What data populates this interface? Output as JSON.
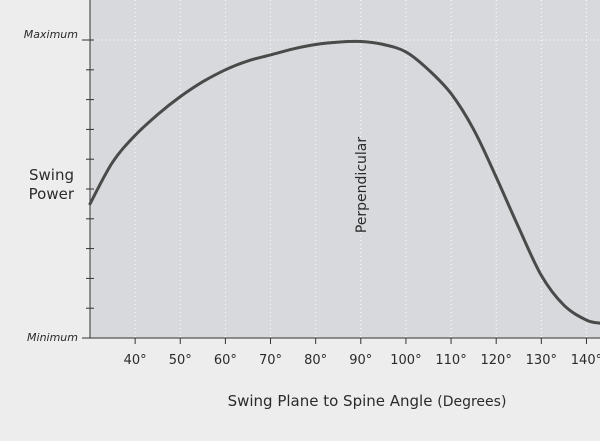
{
  "chart_data": {
    "type": "line",
    "title": "",
    "xlabel_main": "Swing Plane to Spine Angle",
    "xlabel_unit": "(Degrees)",
    "ylabel_line1": "Swing",
    "ylabel_line2": "Power",
    "y_max_label": "Maximum",
    "y_min_label": "Minimum",
    "annotation": "Perpendicular",
    "annotation_x": 90,
    "xlim": [
      30,
      143
    ],
    "ylim": [
      0,
      1
    ],
    "x_ticks": [
      40,
      50,
      60,
      70,
      80,
      90,
      100,
      110,
      120,
      130,
      140
    ],
    "x_tick_labels": [
      "40°",
      "50°",
      "60°",
      "70°",
      "80°",
      "90°",
      "100°",
      "110°",
      "120°",
      "130°",
      "140°"
    ],
    "grid": true,
    "series": [
      {
        "x": [
          30,
          35,
          40,
          45,
          50,
          55,
          60,
          65,
          70,
          75,
          80,
          85,
          90,
          95,
          100,
          105,
          110,
          115,
          120,
          125,
          130,
          135,
          140,
          143
        ],
        "y": [
          0.45,
          0.59,
          0.68,
          0.75,
          0.81,
          0.86,
          0.9,
          0.93,
          0.95,
          0.97,
          0.985,
          0.993,
          0.995,
          0.985,
          0.96,
          0.9,
          0.82,
          0.7,
          0.54,
          0.37,
          0.21,
          0.11,
          0.06,
          0.05
        ]
      }
    ]
  }
}
